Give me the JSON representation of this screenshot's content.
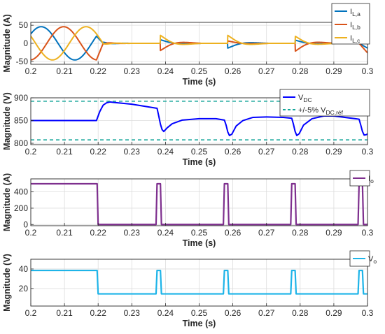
{
  "chart_data": [
    {
      "type": "line",
      "xlabel": "Time (s)",
      "ylabel": "Magnitude (A)",
      "xlim": [
        0.2,
        0.3
      ],
      "ylim": [
        -58,
        58
      ],
      "xticks": [
        "0.2",
        "0.21",
        "0.22",
        "0.23",
        "0.24",
        "0.25",
        "0.26",
        "0.27",
        "0.28",
        "0.29",
        "0.3"
      ],
      "yticks": [
        -50,
        0,
        50
      ],
      "ytick_labels": [
        "-50",
        "0",
        "50"
      ],
      "grid": true,
      "legend_position": "top-right",
      "series": [
        {
          "name": "I",
          "sub": "L,a",
          "color": "#0072BD"
        },
        {
          "name": "I",
          "sub": "L,b",
          "color": "#D95319"
        },
        {
          "name": "I",
          "sub": "L,c",
          "color": "#EDB120"
        }
      ],
      "signal": {
        "amplitude": 46,
        "frequency_hz": 50,
        "steady_until": 0.2195,
        "pulse_starts": [
          0.2385,
          0.2585,
          0.2785
        ],
        "pulse_amplitude": 22,
        "ripple_amplitude": 3
      }
    },
    {
      "type": "line",
      "xlabel": "Time (s)",
      "ylabel": "Magnitude (V)",
      "xlim": [
        0.2,
        0.3
      ],
      "ylim": [
        797,
        900
      ],
      "xticks": [
        "0.2",
        "0.21",
        "0.22",
        "0.23",
        "0.24",
        "0.25",
        "0.26",
        "0.27",
        "0.28",
        "0.29",
        "0.3"
      ],
      "yticks": [
        800,
        850,
        900
      ],
      "ytick_labels": [
        "800",
        "850",
        "900"
      ],
      "grid": true,
      "legend_position": "top-right",
      "series": [
        {
          "name": "V",
          "sub": "DC",
          "color": "#0000FF",
          "style": "solid",
          "points": [
            [
              0.2,
              850
            ],
            [
              0.2195,
              850
            ],
            [
              0.2205,
              870
            ],
            [
              0.2215,
              884
            ],
            [
              0.2225,
              889
            ],
            [
              0.2235,
              891
            ],
            [
              0.2245,
              890
            ],
            [
              0.23,
              886
            ],
            [
              0.2375,
              877
            ],
            [
              0.238,
              860
            ],
            [
              0.2385,
              842
            ],
            [
              0.239,
              830
            ],
            [
              0.2395,
              826
            ],
            [
              0.2405,
              834
            ],
            [
              0.242,
              843
            ],
            [
              0.245,
              851
            ],
            [
              0.25,
              854
            ],
            [
              0.255,
              854
            ],
            [
              0.2575,
              851
            ],
            [
              0.258,
              840
            ],
            [
              0.2585,
              825
            ],
            [
              0.259,
              817
            ],
            [
              0.2597,
              820
            ],
            [
              0.261,
              838
            ],
            [
              0.263,
              850
            ],
            [
              0.266,
              857
            ],
            [
              0.27,
              858
            ],
            [
              0.275,
              857
            ],
            [
              0.2775,
              855
            ],
            [
              0.278,
              842
            ],
            [
              0.2785,
              826
            ],
            [
              0.279,
              817
            ],
            [
              0.2797,
              821
            ],
            [
              0.281,
              840
            ],
            [
              0.2835,
              854
            ],
            [
              0.287,
              860
            ],
            [
              0.29,
              860
            ],
            [
              0.2975,
              853
            ],
            [
              0.298,
              840
            ],
            [
              0.2985,
              826
            ],
            [
              0.299,
              818
            ],
            [
              0.2997,
              819
            ],
            [
              0.3,
              821
            ]
          ]
        },
        {
          "name": "+/-5% V",
          "sub": "DC,réf",
          "color": "#17A69A",
          "style": "dashed",
          "levels": [
            892.5,
            807.5
          ]
        }
      ]
    },
    {
      "type": "line",
      "xlabel": "Time (s)",
      "ylabel": "Magnitude (A)",
      "xlim": [
        0.2,
        0.3
      ],
      "ylim": [
        -15,
        560
      ],
      "xticks": [
        "0.2",
        "0.21",
        "0.22",
        "0.23",
        "0.24",
        "0.25",
        "0.26",
        "0.27",
        "0.28",
        "0.29",
        "0.3"
      ],
      "yticks": [
        0,
        200,
        400
      ],
      "ytick_labels": [
        "0",
        "200",
        "400"
      ],
      "grid": true,
      "legend_position": "top-right",
      "series": [
        {
          "name": "I",
          "sub": "o",
          "color": "#7E2F8E",
          "points": [
            [
              0.2,
              500
            ],
            [
              0.2197,
              500
            ],
            [
              0.22,
              0
            ],
            [
              0.2372,
              0
            ],
            [
              0.2375,
              500
            ],
            [
              0.2385,
              500
            ],
            [
              0.2388,
              0
            ],
            [
              0.2572,
              0
            ],
            [
              0.2575,
              500
            ],
            [
              0.2585,
              500
            ],
            [
              0.2588,
              0
            ],
            [
              0.2772,
              0
            ],
            [
              0.2775,
              500
            ],
            [
              0.2785,
              500
            ],
            [
              0.2788,
              0
            ],
            [
              0.2972,
              0
            ],
            [
              0.2975,
              500
            ],
            [
              0.2985,
              500
            ],
            [
              0.2988,
              0
            ],
            [
              0.3,
              0
            ]
          ]
        }
      ]
    },
    {
      "type": "line",
      "xlabel": "Time (s)",
      "ylabel": "Magnitude (V)",
      "xlim": [
        0.2,
        0.3
      ],
      "ylim": [
        2,
        50
      ],
      "xticks": [
        "0.2",
        "0.21",
        "0.22",
        "0.23",
        "0.24",
        "0.25",
        "0.26",
        "0.27",
        "0.28",
        "0.29",
        "0.3"
      ],
      "yticks": [
        20,
        40
      ],
      "ytick_labels": [
        "20",
        "40"
      ],
      "grid": true,
      "legend_position": "top-right",
      "series": [
        {
          "name": "V",
          "sub": "o",
          "color": "#1EB4E8",
          "points": [
            [
              0.2,
              38.5
            ],
            [
              0.2197,
              38.5
            ],
            [
              0.22,
              14.5
            ],
            [
              0.2372,
              14.5
            ],
            [
              0.2375,
              38.5
            ],
            [
              0.2385,
              38.5
            ],
            [
              0.2388,
              14.5
            ],
            [
              0.2572,
              14.5
            ],
            [
              0.2575,
              38.5
            ],
            [
              0.2585,
              38.5
            ],
            [
              0.2588,
              14.5
            ],
            [
              0.2772,
              14.5
            ],
            [
              0.2775,
              38.5
            ],
            [
              0.2785,
              38.5
            ],
            [
              0.2788,
              14.5
            ],
            [
              0.2972,
              14.5
            ],
            [
              0.2975,
              38.5
            ],
            [
              0.2985,
              38.5
            ],
            [
              0.2988,
              14.5
            ],
            [
              0.3,
              14.5
            ]
          ]
        }
      ]
    }
  ]
}
